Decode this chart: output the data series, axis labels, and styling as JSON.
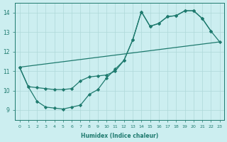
{
  "xlabel": "Humidex (Indice chaleur)",
  "xlim": [
    -0.5,
    23.5
  ],
  "ylim": [
    8.5,
    14.5
  ],
  "xticks": [
    0,
    1,
    2,
    3,
    4,
    5,
    6,
    7,
    8,
    9,
    10,
    11,
    12,
    13,
    14,
    15,
    16,
    17,
    18,
    19,
    20,
    21,
    22,
    23
  ],
  "yticks": [
    9,
    10,
    11,
    12,
    13,
    14
  ],
  "bg_color": "#cceef0",
  "line_color": "#1e7a6e",
  "grid_color": "#aed8d8",
  "line1_x": [
    0,
    1,
    2,
    3,
    4,
    5,
    6,
    7,
    8,
    9,
    10,
    11,
    12,
    13,
    14,
    15,
    16,
    17,
    18,
    19,
    20,
    21,
    22
  ],
  "line1_y": [
    11.2,
    10.2,
    10.15,
    10.1,
    10.05,
    10.05,
    10.1,
    10.5,
    10.7,
    10.75,
    10.8,
    11.0,
    11.55,
    12.6,
    14.05,
    13.3,
    13.45,
    13.8,
    13.85,
    14.1,
    14.1,
    13.7,
    13.05
  ],
  "line2_x": [
    0,
    1,
    2,
    3,
    4,
    5,
    6,
    7,
    8,
    9,
    10,
    11,
    12,
    13,
    14,
    15,
    16,
    17,
    18,
    19,
    20,
    21,
    22,
    23
  ],
  "line2_y": [
    11.2,
    10.2,
    9.45,
    9.15,
    9.1,
    9.05,
    9.15,
    9.25,
    9.8,
    10.05,
    10.65,
    11.1,
    11.55,
    12.6,
    14.05,
    13.3,
    13.45,
    13.8,
    13.85,
    14.1,
    14.1,
    13.7,
    13.05,
    12.5
  ],
  "line3_x": [
    0,
    23
  ],
  "line3_y": [
    11.2,
    12.5
  ]
}
